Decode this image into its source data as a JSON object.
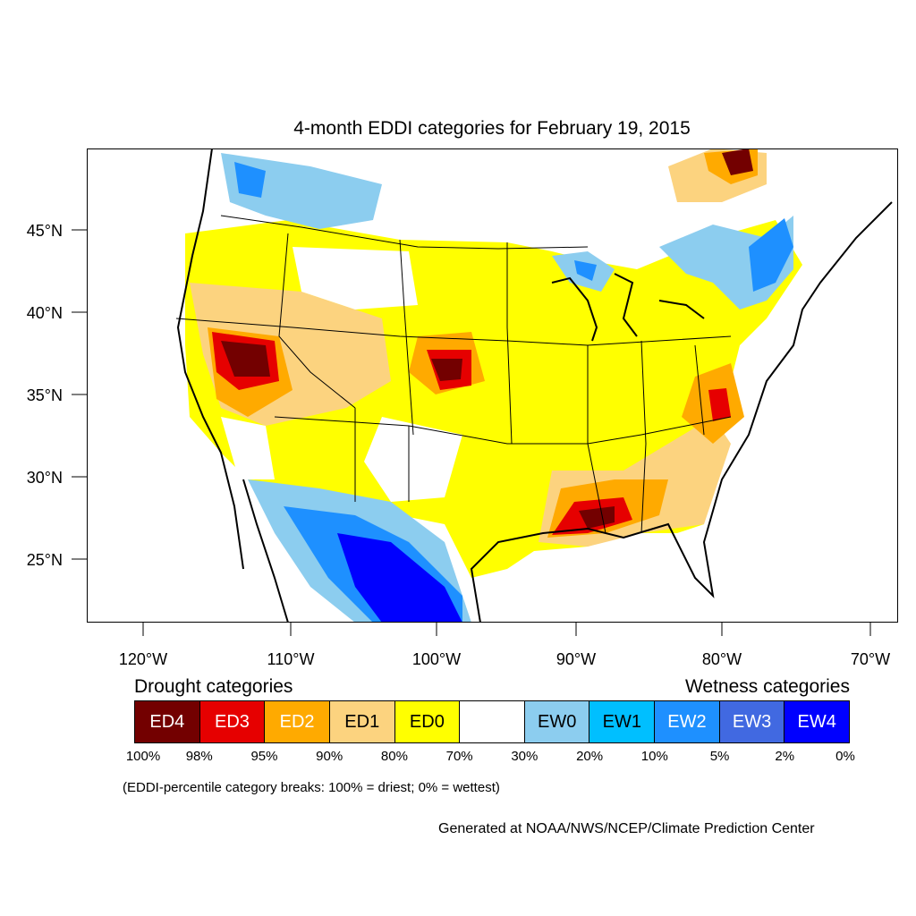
{
  "title": "4-month EDDI categories for February 19, 2015",
  "lat_labels": [
    "45°N",
    "40°N",
    "35°N",
    "30°N",
    "25°N"
  ],
  "lon_labels": [
    "120°W",
    "110°W",
    "100°W",
    "90°W",
    "80°W",
    "70°W"
  ],
  "legend": {
    "drought_heading": "Drought categories",
    "wetness_heading": "Wetness categories",
    "categories": [
      {
        "label": "ED4",
        "color": "#730000",
        "text_color": "#ffffff"
      },
      {
        "label": "ED3",
        "color": "#e60000",
        "text_color": "#ffffff"
      },
      {
        "label": "ED2",
        "color": "#ffaa00",
        "text_color": "#ffffff"
      },
      {
        "label": "ED1",
        "color": "#fcd37f",
        "text_color": "#000000"
      },
      {
        "label": "ED0",
        "color": "#ffff00",
        "text_color": "#000000"
      },
      {
        "label": "",
        "color": "#ffffff",
        "text_color": "#000000"
      },
      {
        "label": "EW0",
        "color": "#8ccdef",
        "text_color": "#000000"
      },
      {
        "label": "EW1",
        "color": "#00bfff",
        "text_color": "#000000"
      },
      {
        "label": "EW2",
        "color": "#1e90ff",
        "text_color": "#ffffff"
      },
      {
        "label": "EW3",
        "color": "#4169e1",
        "text_color": "#ffffff"
      },
      {
        "label": "EW4",
        "color": "#0000ff",
        "text_color": "#ffffff"
      }
    ],
    "breaks": [
      "100%",
      "98%",
      "95%",
      "90%",
      "80%",
      "70%",
      "30%",
      "20%",
      "10%",
      "5%",
      "2%",
      "0%"
    ]
  },
  "note": "(EDDI-percentile category breaks: 100% = driest; 0% = wettest)",
  "credit": "Generated at NOAA/NWS/NCEP/Climate Prediction Center"
}
